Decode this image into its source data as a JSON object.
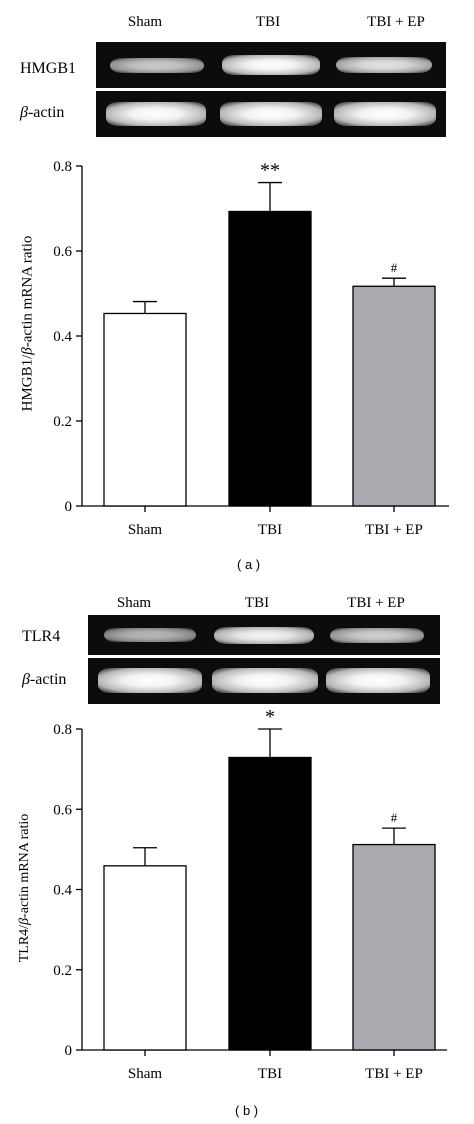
{
  "panel_a": {
    "gel": {
      "lanes": [
        "Sham",
        "TBI",
        "TBI + EP"
      ],
      "rows": [
        {
          "label": "HMGB1",
          "band_intensity": [
            0.6,
            0.95,
            0.75
          ]
        },
        {
          "label": "β-actin",
          "band_intensity": [
            1.0,
            1.0,
            1.0
          ]
        }
      ]
    },
    "caption": "( a )"
  },
  "panel_b": {
    "gel": {
      "lanes": [
        "Sham",
        "TBI",
        "TBI + EP"
      ],
      "rows": [
        {
          "label": "TLR4",
          "band_intensity": [
            0.6,
            0.85,
            0.7
          ]
        },
        {
          "label": "β-actin",
          "band_intensity": [
            1.0,
            1.0,
            1.0
          ]
        }
      ]
    },
    "caption": "( b )"
  },
  "chart_data": [
    {
      "type": "bar",
      "categories": [
        "Sham",
        "TBI",
        "TBI + EP"
      ],
      "values": [
        0.453,
        0.693,
        0.517
      ],
      "errors": [
        0.028,
        0.068,
        0.019
      ],
      "annotations": [
        "",
        "**",
        "#"
      ],
      "bar_colors": [
        "#ffffff",
        "#000000",
        "#a9aaaf"
      ],
      "ylabel_prefix": "HMGB1/",
      "ylabel_italic": "β",
      "ylabel_suffix": "-actin mRNA ratio",
      "ylim": [
        0,
        0.8
      ],
      "yticks": [
        "0",
        "0.2",
        "0.4",
        "0.6",
        "0.8"
      ],
      "grid": false
    },
    {
      "type": "bar",
      "categories": [
        "Sham",
        "TBI",
        "TBI + EP"
      ],
      "values": [
        0.459,
        0.729,
        0.512
      ],
      "errors": [
        0.045,
        0.071,
        0.041
      ],
      "annotations": [
        "",
        "*",
        "#"
      ],
      "bar_colors": [
        "#ffffff",
        "#000000",
        "#a9aaaf"
      ],
      "ylabel_prefix": "TLR4/",
      "ylabel_italic": "β",
      "ylabel_suffix": "-actin mRNA ratio",
      "ylim": [
        0,
        0.8
      ],
      "yticks": [
        "0",
        "0.2",
        "0.4",
        "0.6",
        "0.8"
      ],
      "grid": false
    }
  ]
}
